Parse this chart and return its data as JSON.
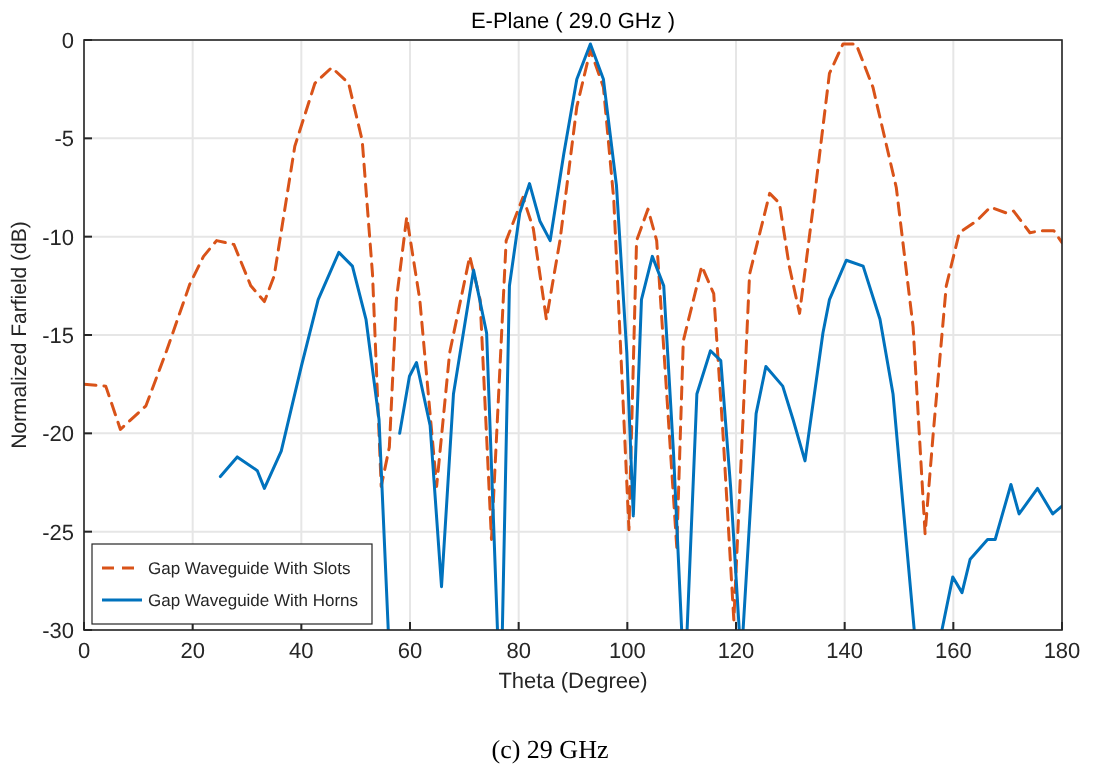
{
  "chart_data": {
    "type": "line",
    "title": "E-Plane ( 29.0 GHz )",
    "xlabel": "Theta (Degree)",
    "ylabel": "Normalized Farfield (dB)",
    "annotations": [
      "(c) 29 GHz"
    ],
    "xlim": [
      0,
      180
    ],
    "ylim": [
      -30,
      0
    ],
    "xticks": [
      0,
      20,
      40,
      60,
      80,
      100,
      120,
      140,
      160,
      180
    ],
    "yticks": [
      -30,
      -25,
      -20,
      -15,
      -10,
      -5,
      0
    ],
    "grid": true,
    "legend": "bottom left",
    "series": [
      {
        "name": "Gap Waveguide With Slots",
        "color": "#d95319",
        "line_style": "dashed",
        "x": [
          0,
          4,
          6.7,
          11.4,
          15.2,
          19.5,
          22,
          24.4,
          27.6,
          30.7,
          33.2,
          35,
          38.8,
          42.5,
          45.6,
          48.7,
          51.2,
          53.1,
          54.7,
          56.2,
          57.5,
          59.4,
          61.8,
          64.9,
          67.3,
          71,
          72.9,
          75,
          77.7,
          80.8,
          82.7,
          85.1,
          87.6,
          90.7,
          93.2,
          95.6,
          97.5,
          100.3,
          101.7,
          103.8,
          105.4,
          109.1,
          110.3,
          113.7,
          115.9,
          117.6,
          119.6,
          122.5,
          126.2,
          128,
          129.8,
          131.7,
          134.2,
          137.2,
          139.7,
          142.1,
          145.2,
          149.5,
          152.6,
          154.8,
          156.3,
          158.7,
          161.1,
          164.3,
          166.8,
          169.8,
          171.1,
          174.1,
          176,
          178.5,
          180
        ],
        "values": [
          -17.5,
          -17.6,
          -19.8,
          -18.6,
          -15.8,
          -12.4,
          -11,
          -10.2,
          -10.4,
          -12.5,
          -13.3,
          -12,
          -5.4,
          -2.2,
          -1.4,
          -2.2,
          -5.1,
          -11.9,
          -22.7,
          -20.7,
          -13.2,
          -9,
          -13.2,
          -22.7,
          -15.9,
          -11,
          -13.2,
          -25.4,
          -10.2,
          -8,
          -9.6,
          -14.2,
          -10.2,
          -3.4,
          -0.5,
          -2.4,
          -8.1,
          -24.9,
          -10.2,
          -8.6,
          -10.2,
          -25.8,
          -15.3,
          -11.5,
          -12.9,
          -20,
          -29.5,
          -11.9,
          -7.8,
          -8.3,
          -11.5,
          -13.9,
          -8.5,
          -1.7,
          -0.2,
          -0.2,
          -2.4,
          -7.5,
          -14.6,
          -25.1,
          -20,
          -12.5,
          -9.8,
          -9.2,
          -8.5,
          -8.8,
          -8.7,
          -9.8,
          -9.7,
          -9.7,
          -10.3
        ]
      },
      {
        "name": "Gap Waveguide With Horns",
        "color": "#0072bd",
        "line_style": "solid",
        "x": [
          25.1,
          28.2,
          31.9,
          33.2,
          36.3,
          40,
          43.1,
          46.9,
          49.4,
          51.9,
          54.3,
          56,
          56.5,
          58.1,
          59.9,
          61.2,
          63.7,
          65.8,
          68,
          71.7,
          74.1,
          76.1,
          76.5,
          77,
          78.3,
          80.2,
          82,
          83.9,
          85.8,
          88.3,
          90.7,
          93.2,
          95.6,
          98,
          99.9,
          101.1,
          102.6,
          104.6,
          106.7,
          108.5,
          110,
          110.5,
          111,
          112.8,
          115.3,
          117.2,
          119,
          120.6,
          121,
          121.3,
          123.7,
          125.5,
          128.6,
          130.5,
          132.7,
          136,
          137.2,
          140.3,
          143.4,
          146.5,
          148.9,
          152.8,
          155,
          157.9,
          159.9,
          161.6,
          163.1,
          166.3,
          167.7,
          170.6,
          172.1,
          175.5,
          178.3,
          180
        ],
        "values": [
          -22.2,
          -21.2,
          -21.9,
          -22.8,
          -20.9,
          -16.6,
          -13.2,
          -10.8,
          -11.5,
          -14.2,
          -19.3,
          -30,
          null,
          -20,
          -17.1,
          -16.4,
          -19.6,
          -27.8,
          -18,
          -11.7,
          -14.9,
          -30,
          null,
          -30,
          -12.5,
          -8.8,
          -7.3,
          -9.2,
          -10.2,
          -5.8,
          -2,
          -0.2,
          -2,
          -7.4,
          -15.9,
          -24.2,
          -13.2,
          -11,
          -12.5,
          -21,
          -30,
          null,
          -30,
          -18,
          -15.8,
          -16.3,
          -22.7,
          -30,
          null,
          -30,
          -19,
          -16.6,
          -17.6,
          -19.3,
          -21.4,
          -14.9,
          -13.2,
          -11.2,
          -11.5,
          -14.2,
          -18,
          -30,
          null,
          -30,
          -27.3,
          -28.1,
          -26.4,
          -25.4,
          -25.4,
          -22.6,
          -24.1,
          -22.8,
          -24.1,
          -23.7
        ]
      }
    ]
  }
}
